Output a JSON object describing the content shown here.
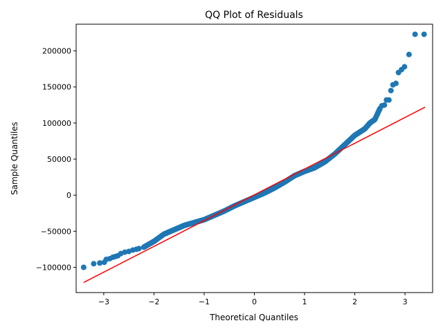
{
  "chart_data": {
    "type": "scatter",
    "title": "QQ Plot of Residuals",
    "xlabel": "Theoretical Quantiles",
    "ylabel": "Sample Quantiles",
    "xlim": [
      -3.55,
      3.55
    ],
    "ylim": [
      -135000,
      237000
    ],
    "x_ticks": [
      -3,
      -2,
      -1,
      0,
      1,
      2,
      3
    ],
    "x_tick_labels": [
      "−3",
      "−2",
      "−1",
      "0",
      "1",
      "2",
      "3"
    ],
    "y_ticks": [
      -100000,
      -50000,
      0,
      50000,
      100000,
      150000,
      200000
    ],
    "y_tick_labels": [
      "−100000",
      "−50000",
      "0",
      "50000",
      "100000",
      "150000",
      "200000"
    ],
    "grid": false,
    "legend": "none",
    "colors": {
      "points": "#1f77b4",
      "line": "#ff0000"
    },
    "reference_line": {
      "x": [
        -3.4,
        3.4
      ],
      "y": [
        -121000,
        122000
      ]
    },
    "anchors": [
      [
        -3.4,
        -100000
      ],
      [
        -3.2,
        -94000
      ],
      [
        -3.0,
        -93000
      ],
      [
        -2.9,
        -88000
      ],
      [
        -2.8,
        -86000
      ],
      [
        -2.7,
        -83000
      ],
      [
        -2.6,
        -79000
      ],
      [
        -2.4,
        -76000
      ],
      [
        -2.2,
        -72000
      ],
      [
        -2.0,
        -64000
      ],
      [
        -1.8,
        -54000
      ],
      [
        -1.6,
        -48000
      ],
      [
        -1.4,
        -42000
      ],
      [
        -1.2,
        -38000
      ],
      [
        -1.0,
        -34000
      ],
      [
        -0.8,
        -28000
      ],
      [
        -0.6,
        -22000
      ],
      [
        -0.4,
        -15000
      ],
      [
        -0.2,
        -9000
      ],
      [
        0.0,
        -3000
      ],
      [
        0.2,
        3000
      ],
      [
        0.4,
        10000
      ],
      [
        0.6,
        18000
      ],
      [
        0.8,
        27000
      ],
      [
        1.0,
        33000
      ],
      [
        1.2,
        38000
      ],
      [
        1.4,
        46000
      ],
      [
        1.6,
        57000
      ],
      [
        1.8,
        70000
      ],
      [
        2.0,
        83000
      ],
      [
        2.2,
        92000
      ],
      [
        2.3,
        100000
      ],
      [
        2.4,
        105000
      ],
      [
        2.5,
        120000
      ],
      [
        2.6,
        130000
      ],
      [
        2.7,
        145000
      ],
      [
        2.8,
        155000
      ],
      [
        2.9,
        172000
      ],
      [
        3.0,
        178000
      ],
      [
        3.1,
        195000
      ],
      [
        3.2,
        223000
      ],
      [
        3.4,
        223000
      ]
    ],
    "points": [
      [
        -3.4,
        -100000
      ],
      [
        -3.2,
        -95000
      ],
      [
        -3.08,
        -94000
      ],
      [
        -2.99,
        -93000
      ],
      [
        -2.95,
        -89000
      ],
      [
        -2.88,
        -88000
      ],
      [
        -2.82,
        -86000
      ],
      [
        -2.77,
        -85000
      ],
      [
        -2.72,
        -84000
      ],
      [
        -2.66,
        -81000
      ],
      [
        -2.58,
        -79000
      ],
      [
        -2.5,
        -78000
      ],
      [
        -2.42,
        -76000
      ],
      [
        -2.35,
        -75000
      ],
      [
        -2.3,
        -74000
      ],
      [
        -2.2,
        -72000
      ],
      [
        3.2,
        223000
      ],
      [
        3.38,
        223000
      ],
      [
        3.08,
        195000
      ],
      [
        2.99,
        178000
      ],
      [
        2.93,
        174000
      ],
      [
        2.87,
        170000
      ],
      [
        2.82,
        155000
      ],
      [
        2.76,
        153000
      ],
      [
        2.72,
        145000
      ],
      [
        2.68,
        132000
      ],
      [
        2.63,
        132000
      ],
      [
        2.59,
        125000
      ],
      [
        2.54,
        124000
      ],
      [
        2.5,
        120000
      ]
    ]
  }
}
